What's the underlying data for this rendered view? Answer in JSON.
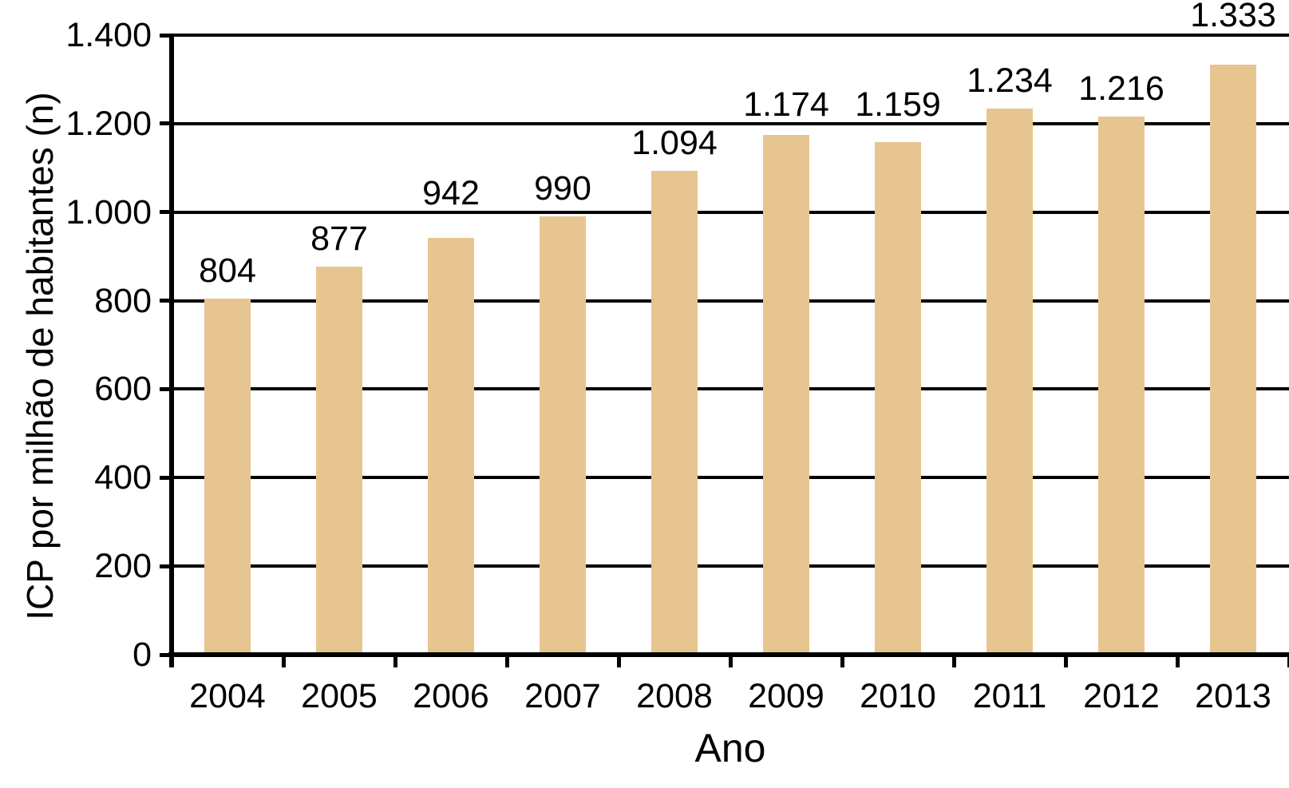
{
  "chart_data": {
    "type": "bar",
    "title": "",
    "xlabel": "Ano",
    "ylabel": "ICP por milhão de habitantes (n)",
    "categories": [
      "2004",
      "2005",
      "2006",
      "2007",
      "2008",
      "2009",
      "2010",
      "2011",
      "2012",
      "2013"
    ],
    "values": [
      804,
      877,
      942,
      990,
      1094,
      1174,
      1159,
      1234,
      1216,
      1333
    ],
    "value_labels": [
      "804",
      "877",
      "942",
      "990",
      "1.094",
      "1.174",
      "1.159",
      "1.234",
      "1.216",
      "1.333"
    ],
    "ylim": [
      0,
      1400
    ],
    "ytick_step": 200,
    "ytick_labels": [
      "0",
      "200",
      "400",
      "600",
      "800",
      "1.000",
      "1.200",
      "1.400"
    ],
    "grid": "horizontal",
    "legend": "none",
    "bar_color": "#E7C591",
    "axis_color": "#000000",
    "text_color": "#000000",
    "background_color": "#FFFFFF"
  }
}
